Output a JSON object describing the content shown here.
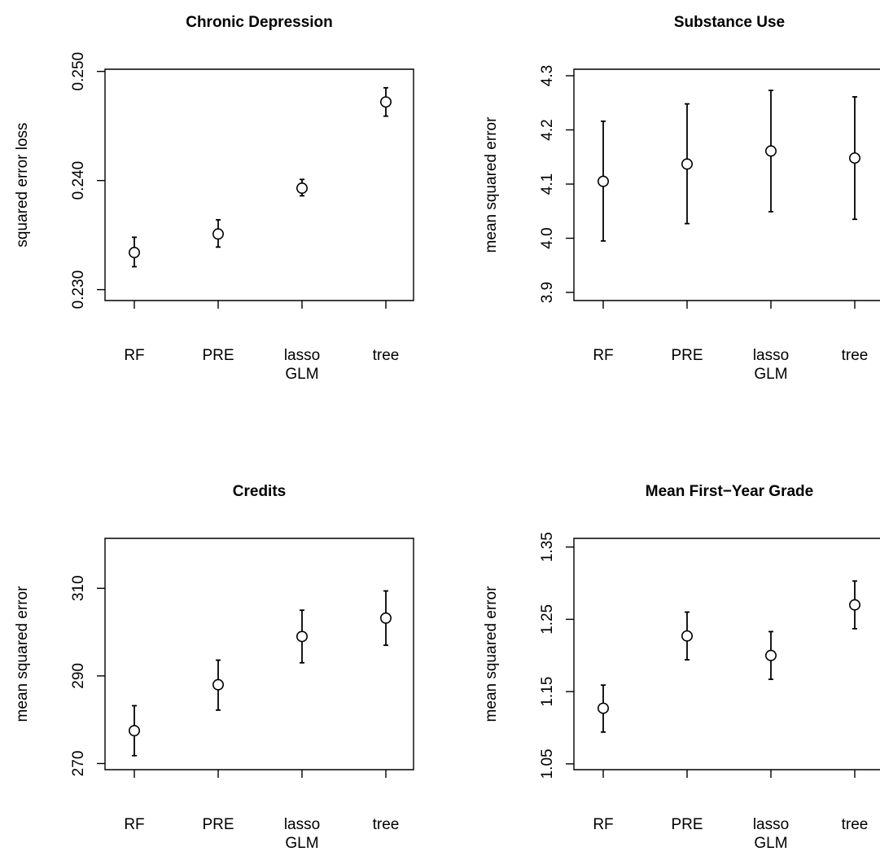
{
  "chart_data": [
    {
      "type": "scatter",
      "title": "Chronic Depression",
      "ylabel": "squared error loss",
      "xlabel": "",
      "categories": [
        [
          "RF"
        ],
        [
          "PRE"
        ],
        [
          "lasso",
          "GLM"
        ],
        [
          "tree"
        ]
      ],
      "yticks": [
        "0.230",
        "0.240",
        "0.250"
      ],
      "ylim": [
        0.229,
        0.2502
      ],
      "values": [
        0.2334,
        0.2351,
        0.2393,
        0.2472
      ],
      "lower": [
        0.2321,
        0.2339,
        0.2386,
        0.2459
      ],
      "upper": [
        0.2348,
        0.2364,
        0.2401,
        0.2485
      ],
      "grid": false,
      "legend": "none"
    },
    {
      "type": "scatter",
      "title": "Substance Use",
      "ylabel": "mean squared error",
      "xlabel": "",
      "categories": [
        [
          "RF"
        ],
        [
          "PRE"
        ],
        [
          "lasso",
          "GLM"
        ],
        [
          "tree"
        ]
      ],
      "yticks": [
        "3.9",
        "4.0",
        "4.1",
        "4.2",
        "4.3"
      ],
      "ylim": [
        3.885,
        4.312
      ],
      "values": [
        4.105,
        4.137,
        4.161,
        4.148
      ],
      "lower": [
        3.995,
        4.027,
        4.049,
        4.035
      ],
      "upper": [
        4.216,
        4.248,
        4.273,
        4.261
      ],
      "grid": false,
      "legend": "none"
    },
    {
      "type": "scatter",
      "title": "Credits",
      "ylabel": "mean squared error",
      "xlabel": "",
      "categories": [
        [
          "RF"
        ],
        [
          "PRE"
        ],
        [
          "lasso",
          "GLM"
        ],
        [
          "tree"
        ]
      ],
      "yticks": [
        "270",
        "290",
        "310"
      ],
      "ylim": [
        268.6,
        321.4
      ],
      "values": [
        277.5,
        288.0,
        299.0,
        303.2
      ],
      "lower": [
        271.8,
        282.2,
        293.0,
        297.0
      ],
      "upper": [
        283.2,
        293.6,
        305.0,
        309.4
      ],
      "grid": false,
      "legend": "none"
    },
    {
      "type": "scatter",
      "title": "Mean First−Year Grade",
      "ylabel": "mean squared error",
      "xlabel": "",
      "categories": [
        [
          "RF"
        ],
        [
          "PRE"
        ],
        [
          "lasso",
          "GLM"
        ],
        [
          "tree"
        ]
      ],
      "yticks": [
        "1.05",
        "1.15",
        "1.25",
        "1.35"
      ],
      "ylim": [
        1.042,
        1.362
      ],
      "values": [
        1.127,
        1.227,
        1.2,
        1.27
      ],
      "lower": [
        1.094,
        1.194,
        1.167,
        1.237
      ],
      "upper": [
        1.159,
        1.26,
        1.233,
        1.303
      ],
      "grid": false,
      "legend": "none"
    }
  ]
}
